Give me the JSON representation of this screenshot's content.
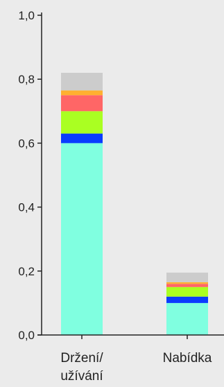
{
  "chart_data": {
    "type": "bar",
    "stacked": true,
    "title": "",
    "xlabel": "",
    "ylabel": "",
    "ylim": [
      0,
      1.0
    ],
    "yticks": [
      "0,0",
      "0,2",
      "0,4",
      "0,6",
      "0,8",
      "1,0"
    ],
    "ytick_values": [
      0,
      0.2,
      0.4,
      0.6,
      0.8,
      1.0
    ],
    "categories": [
      {
        "lines": [
          "Držení/",
          "užívání"
        ]
      },
      {
        "lines": [
          "Nabídka"
        ]
      }
    ],
    "series": [
      {
        "color": "#80ffe0",
        "values": [
          0.6,
          0.1
        ]
      },
      {
        "color": "#0a3cff",
        "values": [
          0.03,
          0.02
        ]
      },
      {
        "color": "#aaff22",
        "values": [
          0.07,
          0.03
        ]
      },
      {
        "color": "#ff6666",
        "values": [
          0.05,
          0.01
        ]
      },
      {
        "color": "#ffb030",
        "values": [
          0.015,
          0.005
        ]
      },
      {
        "color": "#cccccc",
        "values": [
          0.055,
          0.03
        ]
      }
    ],
    "grid": false,
    "legend": "none"
  }
}
